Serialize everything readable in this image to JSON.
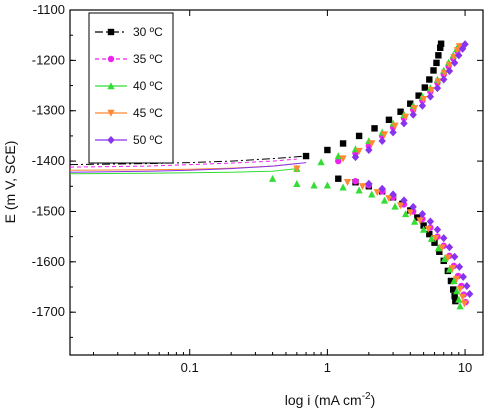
{
  "chart_data": {
    "type": "scatter",
    "title": "",
    "xlabel": "log i (mA cm",
    "xlabel_sup": "-2",
    "xlabel_close": ")",
    "ylabel": "E (m V, SCE)",
    "xscale": "log",
    "xlim": [
      0.0135,
      13.5
    ],
    "ylim": [
      -1785,
      -1100
    ],
    "x_ticks": [
      {
        "value": 0.1,
        "label": "0.1"
      },
      {
        "value": 1,
        "label": "1"
      },
      {
        "value": 10,
        "label": "10"
      }
    ],
    "y_ticks": [
      {
        "value": -1100,
        "label": "-1100"
      },
      {
        "value": -1200,
        "label": "-1200"
      },
      {
        "value": -1300,
        "label": "-1300"
      },
      {
        "value": -1400,
        "label": "-1400"
      },
      {
        "value": -1500,
        "label": "-1500"
      },
      {
        "value": -1600,
        "label": "-1600"
      },
      {
        "value": -1700,
        "label": "-1700"
      }
    ],
    "grid": false,
    "legend_position": "top-left",
    "series": [
      {
        "name": "30 ºC",
        "color": "#000000",
        "marker": "square",
        "line_dash": "8 3 2 3",
        "line": [
          [
            0.0135,
            -1407
          ],
          [
            0.05,
            -1405
          ],
          [
            0.1,
            -1403
          ],
          [
            0.2,
            -1400
          ],
          [
            0.4,
            -1395
          ],
          [
            0.7,
            -1390
          ]
        ],
        "anodic": [
          [
            0.7,
            -1390
          ],
          [
            1.0,
            -1378
          ],
          [
            1.3,
            -1365
          ],
          [
            1.7,
            -1350
          ],
          [
            2.2,
            -1335
          ],
          [
            2.8,
            -1318
          ],
          [
            3.4,
            -1302
          ],
          [
            4.0,
            -1286
          ],
          [
            4.6,
            -1270
          ],
          [
            5.1,
            -1254
          ],
          [
            5.5,
            -1238
          ],
          [
            5.9,
            -1220
          ],
          [
            6.2,
            -1205
          ],
          [
            6.4,
            -1190
          ],
          [
            6.6,
            -1175
          ],
          [
            6.7,
            -1167
          ]
        ],
        "cathodic": [
          [
            1.2,
            -1435
          ],
          [
            1.6,
            -1442
          ],
          [
            2.0,
            -1450
          ],
          [
            2.5,
            -1460
          ],
          [
            3.0,
            -1472
          ],
          [
            3.5,
            -1485
          ],
          [
            4.0,
            -1498
          ],
          [
            4.5,
            -1512
          ],
          [
            5.0,
            -1528
          ],
          [
            5.5,
            -1545
          ],
          [
            6.0,
            -1562
          ],
          [
            6.5,
            -1580
          ],
          [
            7.0,
            -1598
          ],
          [
            7.5,
            -1618
          ],
          [
            7.9,
            -1638
          ],
          [
            8.2,
            -1655
          ],
          [
            8.4,
            -1668
          ],
          [
            8.5,
            -1678
          ]
        ]
      },
      {
        "name": "35 ºC",
        "color": "#ee22ee",
        "marker": "circle",
        "line_dash": "4 3",
        "line": [
          [
            0.0135,
            -1412
          ],
          [
            0.05,
            -1410
          ],
          [
            0.1,
            -1407
          ],
          [
            0.2,
            -1404
          ],
          [
            0.4,
            -1400
          ],
          [
            0.6,
            -1396
          ]
        ],
        "anodic": [
          [
            1.2,
            -1400
          ],
          [
            1.6,
            -1385
          ],
          [
            2.0,
            -1370
          ],
          [
            2.5,
            -1350
          ],
          [
            3.0,
            -1333
          ],
          [
            3.6,
            -1315
          ],
          [
            4.2,
            -1298
          ],
          [
            4.9,
            -1280
          ],
          [
            5.6,
            -1262
          ],
          [
            6.3,
            -1245
          ],
          [
            7.0,
            -1228
          ],
          [
            7.6,
            -1212
          ],
          [
            8.2,
            -1196
          ],
          [
            8.8,
            -1182
          ],
          [
            9.2,
            -1172
          ]
        ],
        "cathodic": [
          [
            1.6,
            -1440
          ],
          [
            2.0,
            -1448
          ],
          [
            2.5,
            -1460
          ],
          [
            3.0,
            -1472
          ],
          [
            3.6,
            -1486
          ],
          [
            4.2,
            -1500
          ],
          [
            4.9,
            -1515
          ],
          [
            5.6,
            -1532
          ],
          [
            6.3,
            -1550
          ],
          [
            7.0,
            -1568
          ],
          [
            7.7,
            -1588
          ],
          [
            8.3,
            -1608
          ],
          [
            8.9,
            -1628
          ],
          [
            9.4,
            -1648
          ],
          [
            9.8,
            -1665
          ],
          [
            10.1,
            -1680
          ]
        ]
      },
      {
        "name": "40 ºC",
        "color": "#33dd33",
        "marker": "triangle-up",
        "line_dash": "",
        "line": [
          [
            0.0135,
            -1425
          ],
          [
            0.05,
            -1424
          ],
          [
            0.1,
            -1423
          ],
          [
            0.2,
            -1422
          ],
          [
            0.4,
            -1420
          ],
          [
            0.6,
            -1415
          ]
        ],
        "anodic": [
          [
            0.6,
            -1415
          ],
          [
            0.9,
            -1402
          ],
          [
            1.2,
            -1390
          ],
          [
            1.6,
            -1376
          ],
          [
            2.0,
            -1360
          ],
          [
            2.5,
            -1343
          ],
          [
            3.0,
            -1325
          ],
          [
            3.6,
            -1308
          ],
          [
            4.2,
            -1290
          ],
          [
            4.9,
            -1272
          ],
          [
            5.6,
            -1255
          ],
          [
            6.3,
            -1238
          ],
          [
            7.0,
            -1220
          ],
          [
            7.6,
            -1204
          ],
          [
            8.2,
            -1190
          ],
          [
            8.7,
            -1177
          ]
        ],
        "cathodic": [
          [
            0.4,
            -1435
          ],
          [
            0.6,
            -1445
          ],
          [
            0.8,
            -1448
          ],
          [
            1.0,
            -1448
          ],
          [
            1.3,
            -1452
          ],
          [
            1.7,
            -1458
          ],
          [
            2.1,
            -1466
          ],
          [
            2.6,
            -1478
          ],
          [
            3.1,
            -1490
          ],
          [
            3.7,
            -1505
          ],
          [
            4.3,
            -1520
          ],
          [
            5.0,
            -1536
          ],
          [
            5.7,
            -1554
          ],
          [
            6.4,
            -1573
          ],
          [
            7.1,
            -1594
          ],
          [
            7.7,
            -1615
          ],
          [
            8.3,
            -1638
          ],
          [
            8.7,
            -1658
          ],
          [
            9.0,
            -1675
          ],
          [
            9.2,
            -1688
          ]
        ]
      },
      {
        "name": "45 ºC",
        "color": "#ff8833",
        "marker": "triangle-down",
        "line_dash": "",
        "line": [
          [
            0.0135,
            -1418
          ],
          [
            0.05,
            -1417
          ],
          [
            0.1,
            -1416
          ],
          [
            0.2,
            -1414
          ],
          [
            0.4,
            -1410
          ],
          [
            0.6,
            -1405
          ]
        ],
        "anodic": [
          [
            1.3,
            -1395
          ],
          [
            1.7,
            -1380
          ],
          [
            2.1,
            -1365
          ],
          [
            2.6,
            -1347
          ],
          [
            3.1,
            -1330
          ],
          [
            3.7,
            -1312
          ],
          [
            4.3,
            -1295
          ],
          [
            5.0,
            -1277
          ],
          [
            5.7,
            -1259
          ],
          [
            6.4,
            -1242
          ],
          [
            7.1,
            -1225
          ],
          [
            7.7,
            -1209
          ],
          [
            8.3,
            -1194
          ],
          [
            8.8,
            -1180
          ],
          [
            9.1,
            -1172
          ]
        ],
        "cathodic": [
          [
            0.6,
            -1415
          ],
          [
            1.4,
            -1442
          ],
          [
            1.8,
            -1450
          ],
          [
            2.3,
            -1462
          ],
          [
            2.8,
            -1474
          ],
          [
            3.4,
            -1488
          ],
          [
            4.0,
            -1502
          ],
          [
            4.7,
            -1518
          ],
          [
            5.4,
            -1535
          ],
          [
            6.1,
            -1553
          ],
          [
            6.8,
            -1572
          ],
          [
            7.5,
            -1592
          ],
          [
            8.1,
            -1613
          ],
          [
            8.7,
            -1634
          ],
          [
            9.2,
            -1654
          ],
          [
            9.6,
            -1670
          ],
          [
            9.9,
            -1683
          ]
        ]
      },
      {
        "name": "50 ºC",
        "color": "#8833ee",
        "marker": "diamond",
        "line_dash": "",
        "line": [
          [
            0.0135,
            -1422
          ],
          [
            0.05,
            -1420
          ],
          [
            0.1,
            -1418
          ],
          [
            0.2,
            -1415
          ],
          [
            0.4,
            -1410
          ],
          [
            0.7,
            -1403
          ]
        ],
        "anodic": [
          [
            1.6,
            -1392
          ],
          [
            2.0,
            -1378
          ],
          [
            2.5,
            -1360
          ],
          [
            3.0,
            -1343
          ],
          [
            3.6,
            -1325
          ],
          [
            4.2,
            -1308
          ],
          [
            4.9,
            -1290
          ],
          [
            5.6,
            -1272
          ],
          [
            6.3,
            -1255
          ],
          [
            7.0,
            -1238
          ],
          [
            7.7,
            -1221
          ],
          [
            8.4,
            -1205
          ],
          [
            9.0,
            -1190
          ],
          [
            9.6,
            -1177
          ],
          [
            10.0,
            -1168
          ]
        ],
        "cathodic": [
          [
            2.0,
            -1445
          ],
          [
            2.5,
            -1455
          ],
          [
            3.0,
            -1466
          ],
          [
            3.6,
            -1478
          ],
          [
            4.2,
            -1491
          ],
          [
            4.9,
            -1505
          ],
          [
            5.6,
            -1520
          ],
          [
            6.3,
            -1536
          ],
          [
            7.0,
            -1553
          ],
          [
            7.7,
            -1571
          ],
          [
            8.4,
            -1590
          ],
          [
            9.1,
            -1610
          ],
          [
            9.7,
            -1630
          ],
          [
            10.3,
            -1648
          ],
          [
            10.8,
            -1664
          ]
        ]
      }
    ]
  }
}
